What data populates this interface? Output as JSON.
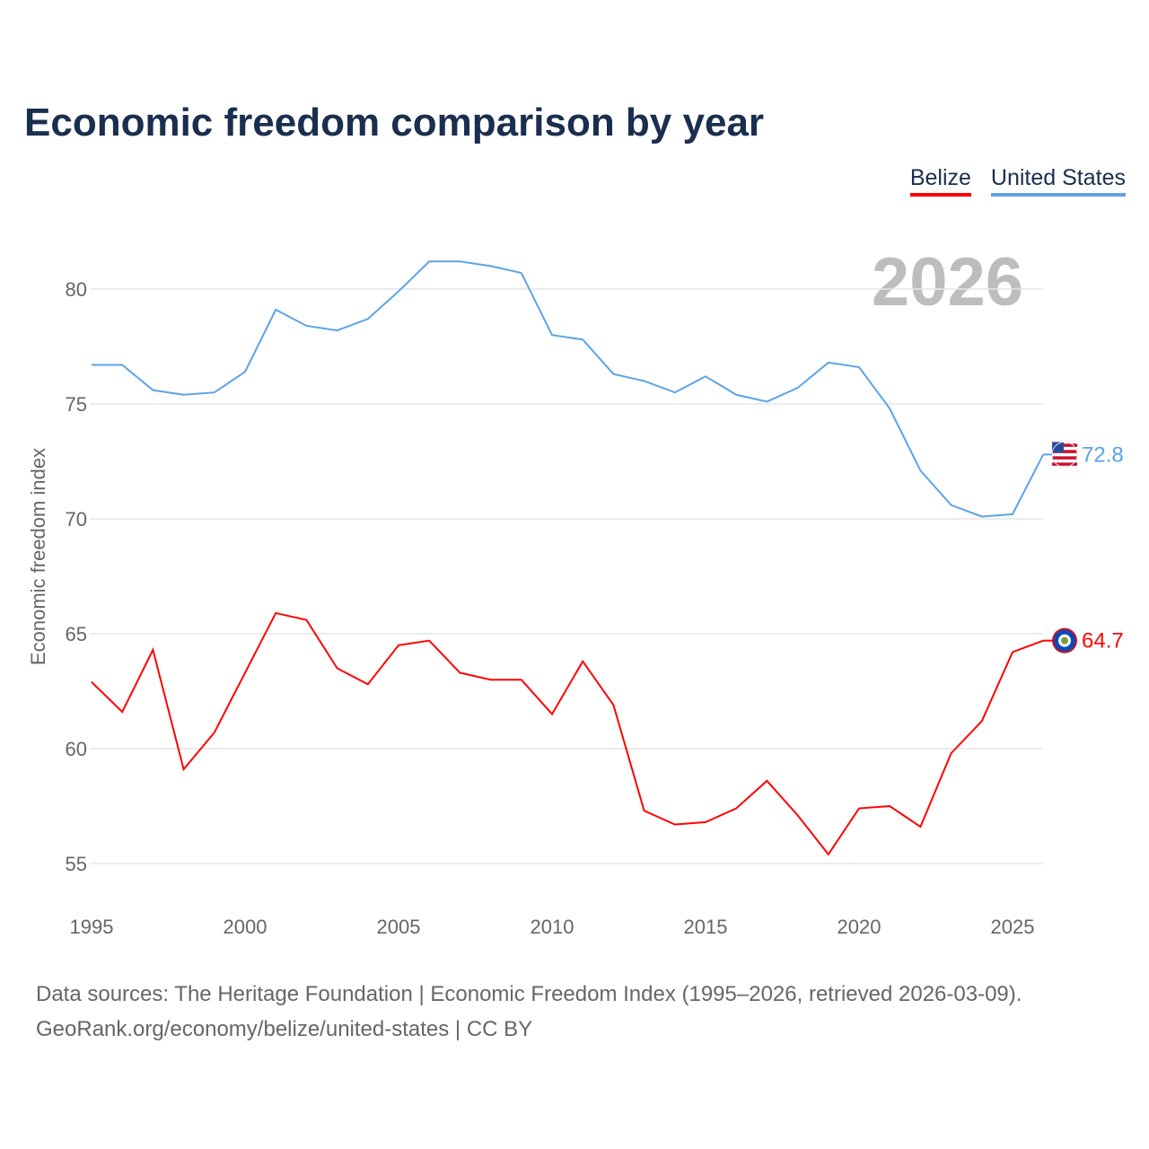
{
  "title": "Economic freedom comparison by year",
  "footer": {
    "line1": "Data sources: The Heritage Foundation | Economic Freedom Index (1995–2026, retrieved 2026-03-09).",
    "line2": "GeoRank.org/economy/belize/united-states | CC BY"
  },
  "chart_data": {
    "type": "line",
    "title": "Economic freedom comparison by year",
    "ylabel": "Economic freedom index",
    "xlabel": "",
    "year_label": "2026",
    "xlim": [
      1995,
      2026
    ],
    "ylim": [
      53.5,
      83
    ],
    "xticks": [
      "1995",
      "2000",
      "2005",
      "2010",
      "2015",
      "2020",
      "2025"
    ],
    "yticks": [
      "55",
      "60",
      "65",
      "70",
      "75",
      "80"
    ],
    "legend_position": "top-right",
    "x": [
      1995,
      1996,
      1997,
      1998,
      1999,
      2000,
      2001,
      2002,
      2003,
      2004,
      2005,
      2006,
      2007,
      2008,
      2009,
      2010,
      2011,
      2012,
      2013,
      2014,
      2015,
      2016,
      2017,
      2018,
      2019,
      2020,
      2021,
      2022,
      2023,
      2024,
      2025,
      2026
    ],
    "series": [
      {
        "name": "Belize",
        "color": "#ff0000",
        "end_label": "64.7",
        "values": [
          62.9,
          61.6,
          64.3,
          59.1,
          60.7,
          63.3,
          65.9,
          65.6,
          63.5,
          62.8,
          64.5,
          64.7,
          63.3,
          63.0,
          63.0,
          61.5,
          63.8,
          61.9,
          57.3,
          56.7,
          56.8,
          57.4,
          58.6,
          57.1,
          55.4,
          57.4,
          57.5,
          56.6,
          59.8,
          61.2,
          64.2,
          64.7
        ]
      },
      {
        "name": "United States",
        "color": "#5ba3e8",
        "end_label": "72.8",
        "values": [
          76.7,
          76.7,
          75.6,
          75.4,
          75.5,
          76.4,
          79.1,
          78.4,
          78.2,
          78.7,
          79.9,
          81.2,
          81.2,
          81.0,
          80.7,
          78.0,
          77.8,
          76.3,
          76.0,
          75.5,
          76.2,
          75.4,
          75.1,
          75.7,
          76.8,
          76.6,
          74.8,
          72.1,
          70.6,
          70.1,
          70.2,
          72.8
        ]
      }
    ]
  }
}
